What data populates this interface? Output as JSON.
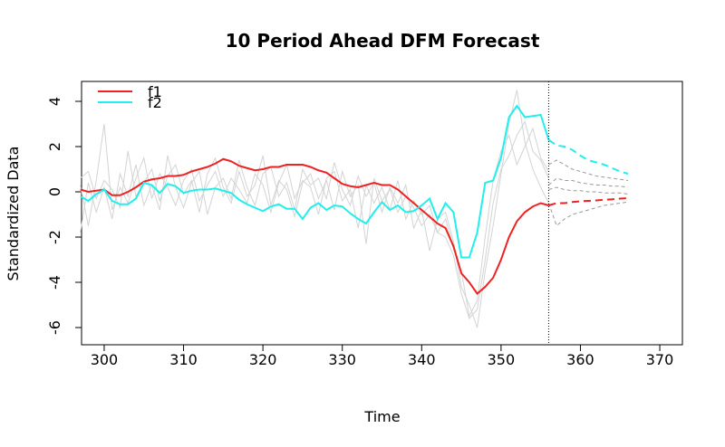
{
  "chart_data": {
    "type": "line",
    "title": "10 Period Ahead DFM Forecast",
    "x_label": "Time",
    "y_label": "Standardized Data",
    "xlim": [
      297.15,
      372.85
    ],
    "ylim": [
      -6.76,
      4.88
    ],
    "xticks": [
      300,
      310,
      320,
      330,
      340,
      350,
      360,
      370
    ],
    "yticks": [
      -6,
      -4,
      -2,
      0,
      2,
      4
    ],
    "legend": "top-left",
    "vline": 356,
    "x": [
      297,
      298,
      299,
      300,
      301,
      302,
      303,
      304,
      305,
      306,
      307,
      308,
      309,
      310,
      311,
      312,
      313,
      314,
      315,
      316,
      317,
      318,
      319,
      320,
      321,
      322,
      323,
      324,
      325,
      326,
      327,
      328,
      329,
      330,
      331,
      332,
      333,
      334,
      335,
      336,
      337,
      338,
      339,
      340,
      341,
      342,
      343,
      344,
      345,
      346,
      347,
      348,
      349,
      350,
      351,
      352,
      353,
      354,
      355,
      356
    ],
    "background_series": [
      {
        "color": "#d3d3d3",
        "values": [
          0.3,
          -1.5,
          0.5,
          3.0,
          -0.8,
          0.2,
          -0.5,
          0.6,
          1.5,
          -0.3,
          0.8,
          0.2,
          -0.6,
          0.5,
          1.0,
          -0.4,
          0.3,
          0.9,
          -0.2,
          0.6,
          0.1,
          -0.5,
          0.8,
          0.3,
          -0.9,
          0.4,
          1.2,
          -0.3,
          0.5,
          0.2,
          -1.0,
          0.6,
          0.9,
          -0.4,
          0.1,
          -1.6,
          0.3,
          -0.5,
          0.2,
          -0.8,
          0.5,
          -1.2,
          -0.4,
          -1.0,
          -0.6,
          -1.8,
          -1.2,
          -2.5,
          -3.5,
          -5.5,
          -4.8,
          -2.0,
          0.5,
          1.8,
          2.5,
          1.2,
          2.0,
          2.8,
          1.5,
          0.9
        ]
      },
      {
        "color": "#d3d3d3",
        "values": [
          -1.8,
          0.4,
          -0.9,
          0.2,
          -1.2,
          0.8,
          -0.2,
          1.2,
          -0.6,
          0.3,
          -0.8,
          1.6,
          0.2,
          -0.7,
          0.4,
          0.9,
          -1.0,
          0.2,
          0.6,
          -0.3,
          1.4,
          0.2,
          -0.6,
          0.8,
          1.1,
          -0.2,
          0.4,
          -0.8,
          1.0,
          0.3,
          0.6,
          -0.3,
          1.3,
          0.1,
          -0.6,
          0.7,
          -0.2,
          0.4,
          -0.9,
          0.2,
          -0.5,
          0.3,
          -1.6,
          -0.8,
          -2.6,
          -1.2,
          -0.9,
          -2.2,
          -4.2,
          -5.0,
          -6.0,
          -3.5,
          -1.5,
          0.8,
          3.0,
          4.5,
          2.2,
          1.0,
          0.2,
          -0.5
        ]
      },
      {
        "color": "#d3d3d3",
        "values": [
          0.6,
          0.9,
          -0.3,
          0.5,
          0.1,
          -0.7,
          1.8,
          -0.2,
          0.4,
          1.0,
          -0.4,
          0.7,
          1.2,
          -0.1,
          0.5,
          -0.9,
          0.8,
          1.5,
          0.2,
          -0.5,
          0.9,
          -0.2,
          0.3,
          1.6,
          -0.6,
          0.5,
          0.1,
          -1.1,
          0.4,
          0.8,
          -0.3,
          0.5,
          -0.8,
          0.9,
          -0.2,
          0.3,
          -2.3,
          0.6,
          -0.4,
          0.1,
          -0.9,
          -0.2,
          -0.7,
          -1.5,
          -1.0,
          -1.8,
          -2.0,
          -2.8,
          -4.5,
          -5.6,
          -5.2,
          -3.0,
          -0.5,
          1.0,
          1.6,
          2.5,
          3.1,
          1.8,
          1.4,
          0.6
        ]
      }
    ],
    "series": [
      {
        "name": "f1",
        "color": "#ee2222",
        "values": [
          0.1,
          0.0,
          0.05,
          0.1,
          -0.15,
          -0.15,
          0.0,
          0.2,
          0.45,
          0.55,
          0.6,
          0.7,
          0.7,
          0.75,
          0.9,
          1.0,
          1.1,
          1.25,
          1.45,
          1.35,
          1.15,
          1.05,
          0.95,
          1.0,
          1.1,
          1.1,
          1.2,
          1.2,
          1.2,
          1.1,
          0.95,
          0.85,
          0.6,
          0.35,
          0.25,
          0.2,
          0.3,
          0.4,
          0.3,
          0.3,
          0.1,
          -0.2,
          -0.5,
          -0.8,
          -1.1,
          -1.4,
          -1.6,
          -2.4,
          -3.6,
          -4.0,
          -4.5,
          -4.2,
          -3.8,
          -3.0,
          -2.0,
          -1.3,
          -0.9,
          -0.65,
          -0.5,
          -0.6
        ]
      },
      {
        "name": "f2",
        "color": "#22eeee",
        "values": [
          -0.2,
          -0.4,
          -0.1,
          0.1,
          -0.4,
          -0.55,
          -0.55,
          -0.3,
          0.4,
          0.3,
          -0.05,
          0.35,
          0.25,
          -0.05,
          0.05,
          0.1,
          0.1,
          0.15,
          0.05,
          -0.05,
          -0.35,
          -0.55,
          -0.7,
          -0.85,
          -0.65,
          -0.55,
          -0.75,
          -0.75,
          -1.2,
          -0.7,
          -0.5,
          -0.8,
          -0.6,
          -0.65,
          -0.95,
          -1.2,
          -1.4,
          -0.9,
          -0.45,
          -0.8,
          -0.6,
          -0.9,
          -0.85,
          -0.6,
          -0.3,
          -1.2,
          -0.5,
          -0.9,
          -2.9,
          -2.9,
          -1.8,
          0.4,
          0.5,
          1.5,
          3.3,
          3.8,
          3.3,
          3.35,
          3.4,
          2.3
        ]
      }
    ],
    "forecast": {
      "x": [
        356,
        357,
        358,
        359,
        360,
        361,
        362,
        363,
        364,
        365,
        366
      ],
      "series": [
        {
          "color": "#999999",
          "values": [
            1.2,
            1.4,
            1.2,
            1.0,
            0.9,
            0.8,
            0.7,
            0.65,
            0.6,
            0.55,
            0.5
          ]
        },
        {
          "color": "#999999",
          "values": [
            -0.5,
            -1.5,
            -1.2,
            -1.0,
            -0.9,
            -0.8,
            -0.7,
            -0.6,
            -0.55,
            -0.5,
            -0.45
          ]
        },
        {
          "color": "#999999",
          "values": [
            0.3,
            0.6,
            0.5,
            0.5,
            0.4,
            0.35,
            0.3,
            0.3,
            0.25,
            0.25,
            0.2
          ]
        },
        {
          "color": "#999999",
          "values": [
            0.1,
            0.2,
            0.1,
            0.05,
            0.05,
            0.0,
            0.0,
            -0.05,
            -0.05,
            -0.05,
            -0.1
          ]
        },
        {
          "color": "#ee2222",
          "values": [
            -0.6,
            -0.5,
            -0.5,
            -0.45,
            -0.42,
            -0.4,
            -0.38,
            -0.35,
            -0.33,
            -0.3,
            -0.28
          ]
        },
        {
          "color": "#22eeee",
          "values": [
            2.3,
            2.05,
            2.0,
            1.85,
            1.6,
            1.4,
            1.3,
            1.2,
            1.05,
            0.9,
            0.8
          ]
        }
      ]
    }
  }
}
